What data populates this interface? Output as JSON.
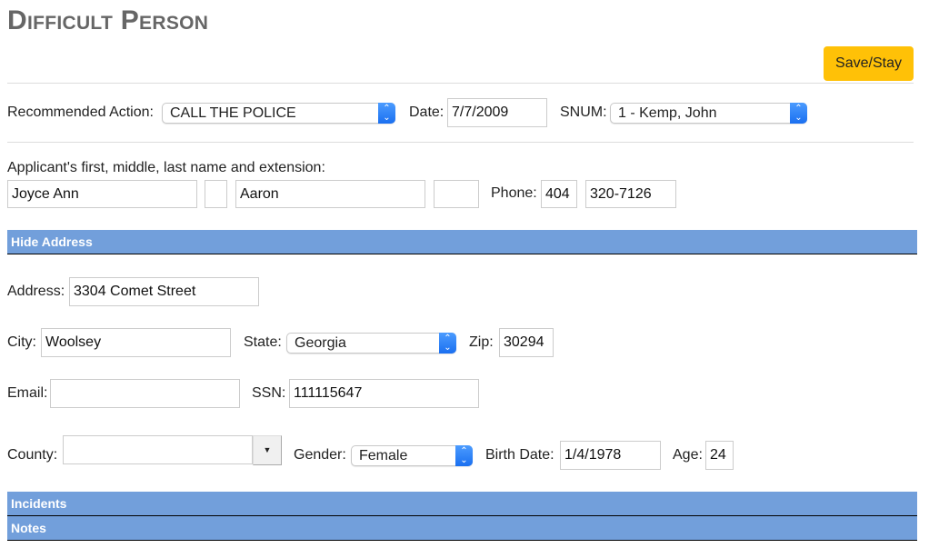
{
  "title": "Difficult Person",
  "save_label": "Save/Stay",
  "row1": {
    "action_label": "Recommended Action:",
    "action_value": "CALL THE POLICE",
    "date_label": "Date:",
    "date_value": "7/7/2009",
    "snum_label": "SNUM:",
    "snum_value": "1 - Kemp, John"
  },
  "applicant": {
    "label": "Applicant's first, middle, last name and extension:",
    "first": "Joyce Ann",
    "middle": "",
    "last": "Aaron",
    "ext": "",
    "phone_label": "Phone:",
    "area": "404",
    "phone": "320-7126"
  },
  "sections": {
    "address": "Hide Address",
    "incidents": "Incidents",
    "notes": "Notes"
  },
  "address": {
    "address_label": "Address:",
    "address_value": "3304 Comet Street",
    "city_label": "City:",
    "city_value": "Woolsey",
    "state_label": "State:",
    "state_value": "Georgia",
    "zip_label": "Zip:",
    "zip_value": "30294",
    "email_label": "Email:",
    "email_value": "",
    "ssn_label": "SSN:",
    "ssn_value": "111115647",
    "county_label": "County:",
    "county_value": "",
    "gender_label": "Gender:",
    "gender_value": "Female",
    "birth_label": "Birth Date:",
    "birth_value": "1/4/1978",
    "age_label": "Age:",
    "age_value": "24"
  },
  "colors": {
    "section_bar": "#729fdb",
    "save_button": "#ffc107",
    "select_arrow": "#1a6ff0"
  }
}
